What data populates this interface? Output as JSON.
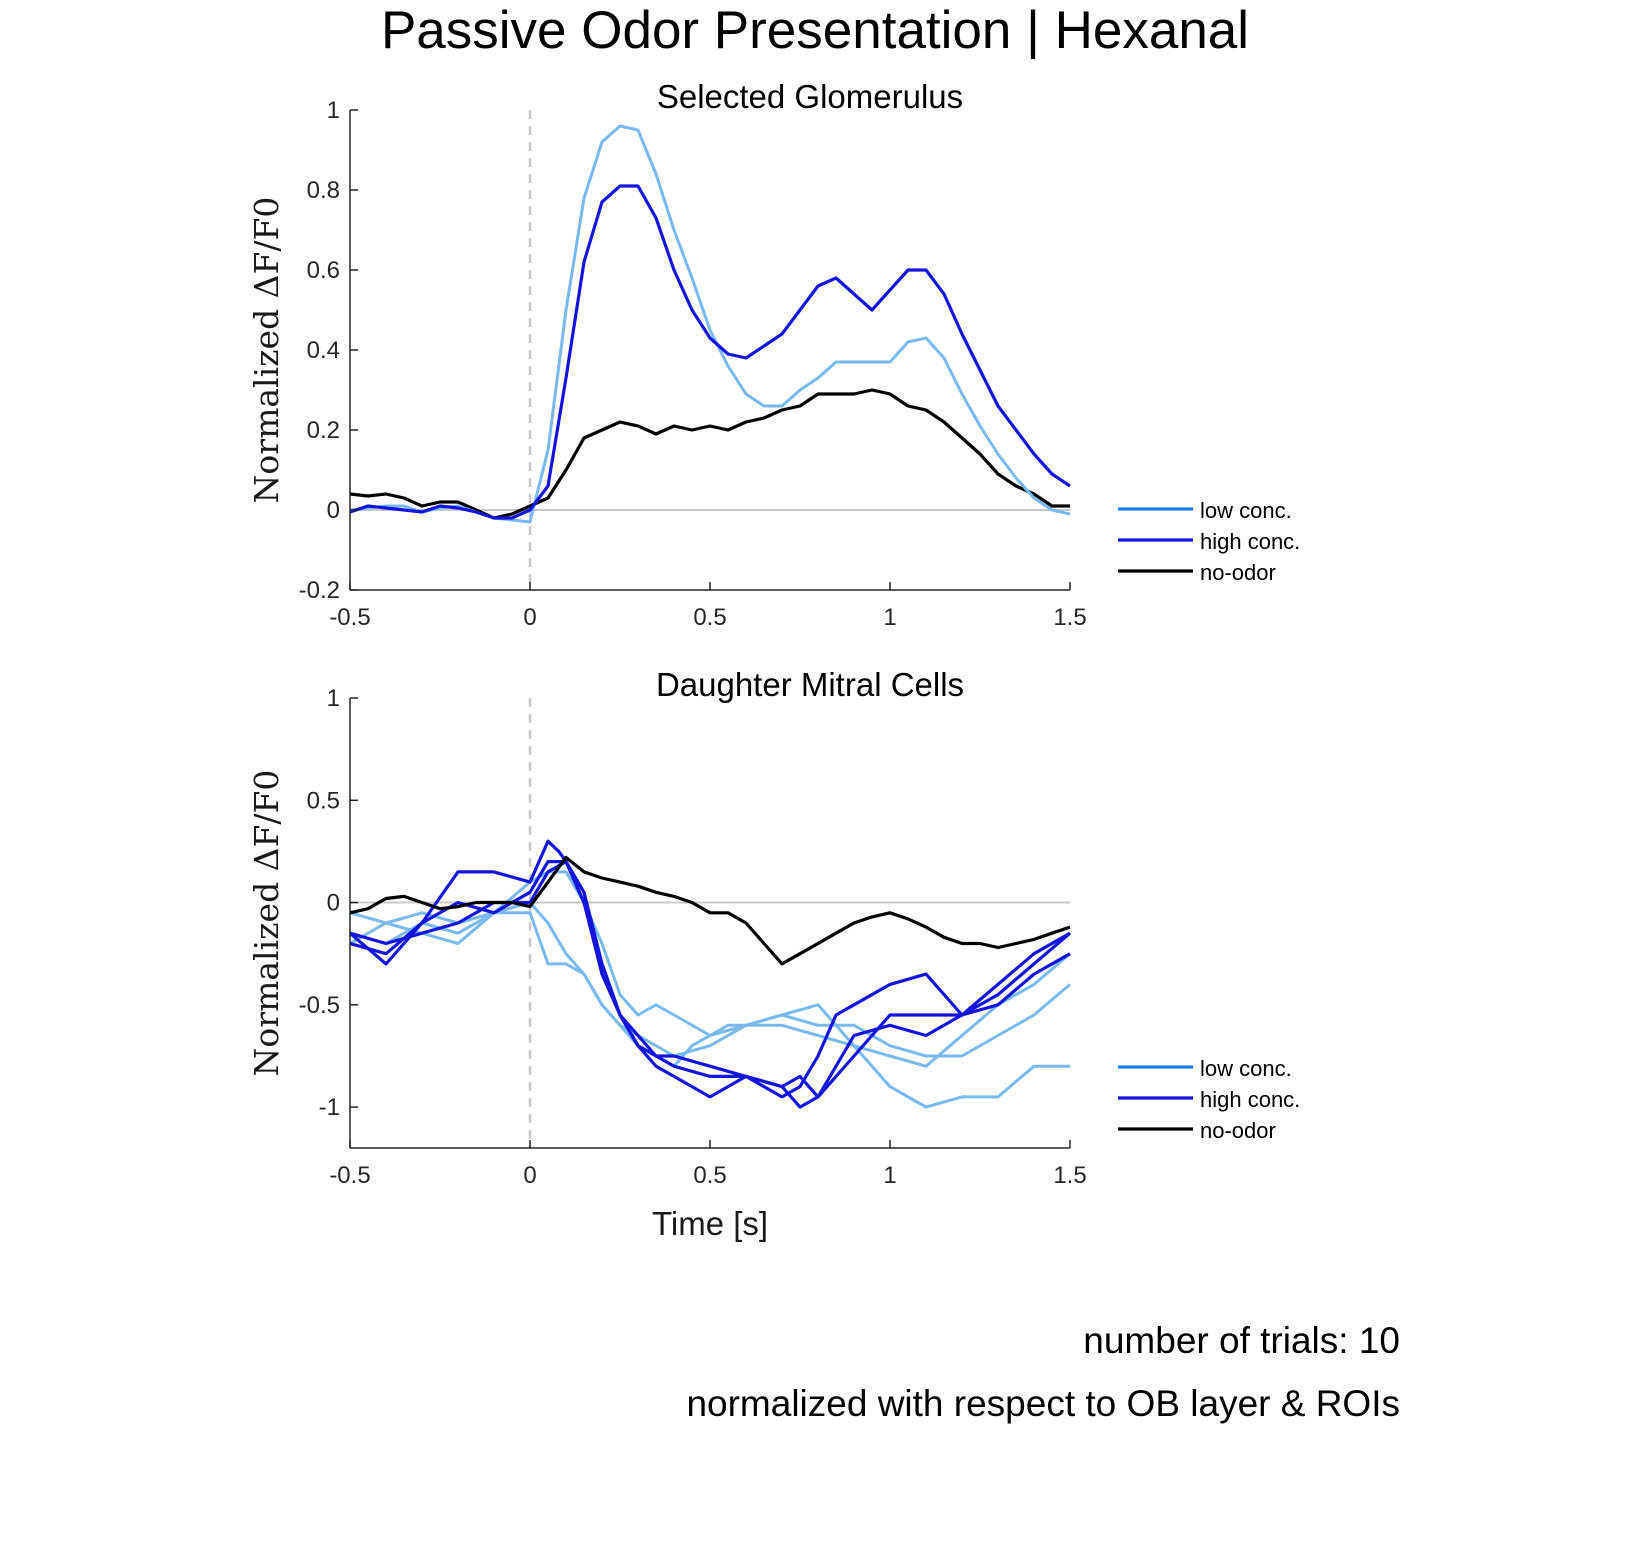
{
  "figure": {
    "title": "Passive Odor Presentation | Hexanal",
    "notes": [
      "number of trials: 10",
      "normalized with respect to OB layer & ROIs"
    ]
  },
  "colors": {
    "low": "#7ab8ee",
    "high": "#1414dc",
    "none": "#000000",
    "zero_line": "#c8c8c8",
    "stim_line": "#c8c8c8",
    "axis": "#262626"
  },
  "chart_data": [
    {
      "type": "line",
      "title": "Selected Glomerulus",
      "xlabel": "",
      "ylabel": "Normalized ΔF/F0",
      "xlim": [
        -0.5,
        1.5
      ],
      "ylim": [
        -0.2,
        1
      ],
      "xticks": [
        -0.5,
        0,
        0.5,
        1,
        1.5
      ],
      "xtick_labels": [
        "-0.5",
        "0",
        "0.5",
        "1",
        "1.5"
      ],
      "yticks": [
        -0.2,
        0,
        0.2,
        0.4,
        0.6,
        0.8,
        1
      ],
      "ytick_labels": [
        "-0.2",
        "0",
        "0.2",
        "0.4",
        "0.6",
        "0.8",
        "1"
      ],
      "grid": false,
      "zero_line": true,
      "stimulus_line_x": 0,
      "legend": {
        "placement": "outside-right",
        "entries": [
          {
            "label": "low conc.",
            "key": "low",
            "color": "#1e7de6"
          },
          {
            "label": "high conc.",
            "key": "high",
            "color": "#1414dc"
          },
          {
            "label": "no-odor",
            "key": "none",
            "color": "#000000"
          }
        ]
      },
      "series": [
        {
          "key": "none",
          "x": [
            -0.5,
            -0.45,
            -0.4,
            -0.35,
            -0.3,
            -0.25,
            -0.2,
            -0.15,
            -0.1,
            -0.05,
            0,
            0.05,
            0.1,
            0.15,
            0.2,
            0.25,
            0.3,
            0.35,
            0.4,
            0.45,
            0.5,
            0.55,
            0.6,
            0.65,
            0.7,
            0.75,
            0.8,
            0.85,
            0.9,
            0.95,
            1.0,
            1.05,
            1.1,
            1.15,
            1.2,
            1.25,
            1.3,
            1.35,
            1.4,
            1.45,
            1.5
          ],
          "y": [
            0.04,
            0.035,
            0.04,
            0.03,
            0.01,
            0.02,
            0.02,
            0.0,
            -0.02,
            -0.01,
            0.01,
            0.03,
            0.1,
            0.18,
            0.2,
            0.22,
            0.21,
            0.19,
            0.21,
            0.2,
            0.21,
            0.2,
            0.22,
            0.23,
            0.25,
            0.26,
            0.29,
            0.29,
            0.29,
            0.3,
            0.29,
            0.26,
            0.25,
            0.22,
            0.18,
            0.14,
            0.09,
            0.06,
            0.04,
            0.01,
            0.01
          ]
        },
        {
          "key": "low",
          "x": [
            -0.5,
            -0.45,
            -0.4,
            -0.35,
            -0.3,
            -0.25,
            -0.2,
            -0.15,
            -0.1,
            -0.05,
            0,
            0.05,
            0.1,
            0.15,
            0.2,
            0.25,
            0.3,
            0.35,
            0.4,
            0.45,
            0.5,
            0.55,
            0.6,
            0.65,
            0.7,
            0.75,
            0.8,
            0.85,
            0.9,
            0.95,
            1.0,
            1.05,
            1.1,
            1.15,
            1.2,
            1.25,
            1.3,
            1.35,
            1.4,
            1.45,
            1.5
          ],
          "y": [
            0.0,
            0.005,
            0.01,
            0.01,
            -0.005,
            0.005,
            0.01,
            -0.005,
            -0.02,
            -0.025,
            -0.03,
            0.15,
            0.5,
            0.78,
            0.92,
            0.96,
            0.95,
            0.84,
            0.7,
            0.58,
            0.45,
            0.36,
            0.29,
            0.26,
            0.26,
            0.3,
            0.33,
            0.37,
            0.37,
            0.37,
            0.37,
            0.42,
            0.43,
            0.38,
            0.29,
            0.21,
            0.14,
            0.08,
            0.03,
            0.0,
            -0.01
          ]
        },
        {
          "key": "high",
          "x": [
            -0.5,
            -0.45,
            -0.4,
            -0.35,
            -0.3,
            -0.25,
            -0.2,
            -0.15,
            -0.1,
            -0.05,
            0,
            0.05,
            0.1,
            0.15,
            0.2,
            0.25,
            0.3,
            0.35,
            0.4,
            0.45,
            0.5,
            0.55,
            0.6,
            0.65,
            0.7,
            0.75,
            0.8,
            0.85,
            0.9,
            0.95,
            1.0,
            1.05,
            1.1,
            1.15,
            1.2,
            1.25,
            1.3,
            1.35,
            1.4,
            1.45,
            1.5
          ],
          "y": [
            -0.005,
            0.01,
            0.005,
            0.0,
            -0.005,
            0.01,
            0.005,
            -0.005,
            -0.02,
            -0.02,
            0.0,
            0.06,
            0.33,
            0.62,
            0.77,
            0.81,
            0.81,
            0.73,
            0.6,
            0.5,
            0.43,
            0.39,
            0.38,
            0.41,
            0.44,
            0.5,
            0.56,
            0.58,
            0.54,
            0.5,
            0.55,
            0.6,
            0.6,
            0.54,
            0.44,
            0.35,
            0.26,
            0.2,
            0.14,
            0.09,
            0.06
          ]
        }
      ]
    },
    {
      "type": "line",
      "title": "Daughter Mitral Cells",
      "xlabel": "Time [s]",
      "ylabel": "Normalized ΔF/F0",
      "xlim": [
        -0.5,
        1.5
      ],
      "ylim": [
        -1.2,
        1
      ],
      "xticks": [
        -0.5,
        0,
        0.5,
        1,
        1.5
      ],
      "xtick_labels": [
        "-0.5",
        "0",
        "0.5",
        "1",
        "1.5"
      ],
      "yticks": [
        -1,
        -0.5,
        0,
        0.5,
        1
      ],
      "ytick_labels": [
        "-1",
        "-0.5",
        "0",
        "0.5",
        "1"
      ],
      "grid": false,
      "zero_line": true,
      "stimulus_line_x": 0,
      "legend": {
        "placement": "outside-right",
        "entries": [
          {
            "label": "low conc.",
            "key": "low",
            "color": "#1e7de6"
          },
          {
            "label": "high conc.",
            "key": "high",
            "color": "#1414dc"
          },
          {
            "label": "no-odor",
            "key": "none",
            "color": "#000000"
          }
        ]
      },
      "series": [
        {
          "key": "low",
          "x": [
            -0.5,
            -0.4,
            -0.3,
            -0.2,
            -0.1,
            0,
            0.05,
            0.1,
            0.15,
            0.2,
            0.25,
            0.3,
            0.35,
            0.4,
            0.45,
            0.5,
            0.55,
            0.6,
            0.7,
            0.8,
            0.9,
            1.0,
            1.1,
            1.2,
            1.3,
            1.4,
            1.5
          ],
          "y": [
            -0.05,
            -0.1,
            -0.15,
            -0.2,
            -0.05,
            0.0,
            -0.1,
            -0.25,
            -0.35,
            -0.5,
            -0.6,
            -0.7,
            -0.75,
            -0.8,
            -0.7,
            -0.65,
            -0.6,
            -0.6,
            -0.55,
            -0.5,
            -0.7,
            -0.9,
            -1.0,
            -0.95,
            -0.95,
            -0.8,
            -0.8
          ]
        },
        {
          "key": "low",
          "x": [
            -0.5,
            -0.4,
            -0.3,
            -0.2,
            -0.1,
            0,
            0.05,
            0.1,
            0.15,
            0.2,
            0.25,
            0.3,
            0.35,
            0.4,
            0.5,
            0.6,
            0.7,
            0.8,
            0.9,
            1.0,
            1.1,
            1.2,
            1.3,
            1.4,
            1.5
          ],
          "y": [
            -0.2,
            -0.1,
            -0.05,
            -0.1,
            -0.05,
            -0.05,
            -0.3,
            -0.3,
            -0.35,
            -0.5,
            -0.6,
            -0.65,
            -0.7,
            -0.75,
            -0.7,
            -0.6,
            -0.55,
            -0.6,
            -0.6,
            -0.7,
            -0.75,
            -0.75,
            -0.65,
            -0.55,
            -0.4
          ]
        },
        {
          "key": "low",
          "x": [
            -0.5,
            -0.4,
            -0.3,
            -0.2,
            -0.1,
            0,
            0.05,
            0.1,
            0.15,
            0.2,
            0.25,
            0.3,
            0.35,
            0.4,
            0.5,
            0.6,
            0.7,
            0.8,
            0.9,
            1.0,
            1.1,
            1.2,
            1.3,
            1.4,
            1.5
          ],
          "y": [
            -0.15,
            -0.2,
            -0.1,
            -0.15,
            -0.05,
            0.1,
            0.15,
            0.15,
            0.0,
            -0.2,
            -0.45,
            -0.55,
            -0.5,
            -0.55,
            -0.65,
            -0.6,
            -0.6,
            -0.65,
            -0.7,
            -0.75,
            -0.8,
            -0.65,
            -0.5,
            -0.4,
            -0.25
          ]
        },
        {
          "key": "high",
          "x": [
            -0.5,
            -0.4,
            -0.3,
            -0.2,
            -0.1,
            0,
            0.05,
            0.08,
            0.1,
            0.15,
            0.2,
            0.25,
            0.3,
            0.35,
            0.4,
            0.5,
            0.6,
            0.7,
            0.75,
            0.8,
            0.9,
            1.0,
            1.1,
            1.2,
            1.3,
            1.4,
            1.5
          ],
          "y": [
            -0.15,
            -0.3,
            -0.1,
            0.15,
            0.15,
            0.1,
            0.3,
            0.25,
            0.2,
            0.0,
            -0.3,
            -0.55,
            -0.7,
            -0.75,
            -0.8,
            -0.85,
            -0.85,
            -0.9,
            -0.85,
            -0.95,
            -0.65,
            -0.6,
            -0.65,
            -0.55,
            -0.4,
            -0.25,
            -0.15
          ]
        },
        {
          "key": "high",
          "x": [
            -0.5,
            -0.4,
            -0.3,
            -0.2,
            -0.1,
            0,
            0.05,
            0.1,
            0.15,
            0.2,
            0.25,
            0.3,
            0.35,
            0.4,
            0.5,
            0.6,
            0.7,
            0.75,
            0.8,
            0.9,
            1.0,
            1.1,
            1.2,
            1.3,
            1.4,
            1.5
          ],
          "y": [
            -0.2,
            -0.25,
            -0.1,
            0.0,
            -0.05,
            0.05,
            0.2,
            0.2,
            0.0,
            -0.35,
            -0.55,
            -0.65,
            -0.75,
            -0.75,
            -0.8,
            -0.85,
            -0.9,
            -1.0,
            -0.95,
            -0.75,
            -0.55,
            -0.55,
            -0.55,
            -0.45,
            -0.3,
            -0.15
          ]
        },
        {
          "key": "high",
          "x": [
            -0.5,
            -0.4,
            -0.3,
            -0.2,
            -0.1,
            0,
            0.05,
            0.1,
            0.15,
            0.2,
            0.25,
            0.3,
            0.35,
            0.4,
            0.5,
            0.6,
            0.7,
            0.75,
            0.8,
            0.85,
            0.9,
            1.0,
            1.1,
            1.2,
            1.3,
            1.4,
            1.5
          ],
          "y": [
            -0.15,
            -0.2,
            -0.15,
            -0.1,
            0.0,
            0.0,
            0.15,
            0.2,
            0.05,
            -0.3,
            -0.55,
            -0.7,
            -0.8,
            -0.85,
            -0.95,
            -0.85,
            -0.95,
            -0.9,
            -0.75,
            -0.55,
            -0.5,
            -0.4,
            -0.35,
            -0.55,
            -0.5,
            -0.35,
            -0.25
          ]
        },
        {
          "key": "none",
          "x": [
            -0.5,
            -0.45,
            -0.4,
            -0.35,
            -0.3,
            -0.25,
            -0.2,
            -0.15,
            -0.1,
            -0.05,
            0,
            0.05,
            0.1,
            0.15,
            0.2,
            0.25,
            0.3,
            0.35,
            0.4,
            0.45,
            0.5,
            0.55,
            0.6,
            0.65,
            0.7,
            0.75,
            0.8,
            0.85,
            0.9,
            0.95,
            1.0,
            1.05,
            1.1,
            1.15,
            1.2,
            1.25,
            1.3,
            1.35,
            1.4,
            1.45,
            1.5
          ],
          "y": [
            -0.05,
            -0.03,
            0.02,
            0.03,
            0.0,
            -0.03,
            -0.02,
            0.0,
            0.0,
            0.0,
            -0.02,
            0.1,
            0.22,
            0.15,
            0.12,
            0.1,
            0.08,
            0.05,
            0.03,
            0.0,
            -0.05,
            -0.05,
            -0.1,
            -0.2,
            -0.3,
            -0.25,
            -0.2,
            -0.15,
            -0.1,
            -0.07,
            -0.05,
            -0.08,
            -0.12,
            -0.17,
            -0.2,
            -0.2,
            -0.22,
            -0.2,
            -0.18,
            -0.15,
            -0.12
          ]
        }
      ]
    }
  ]
}
